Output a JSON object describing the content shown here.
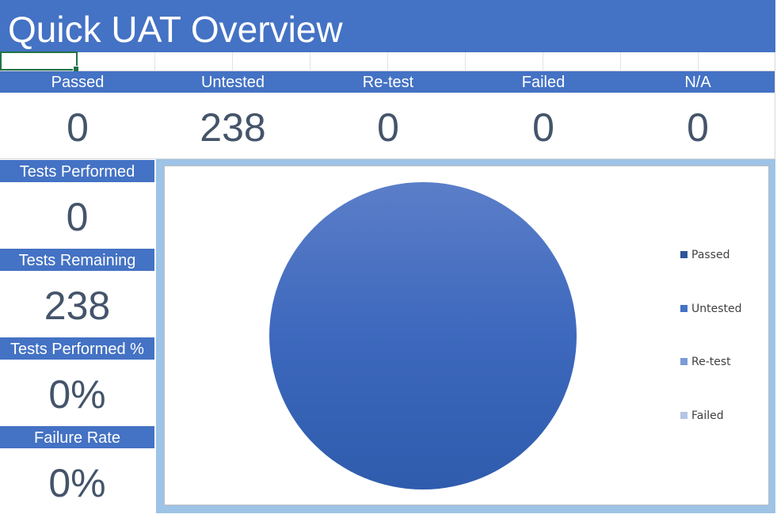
{
  "header": {
    "title": "Quick UAT Overview"
  },
  "status_summary": [
    {
      "label": "Passed",
      "value": "0"
    },
    {
      "label": "Untested",
      "value": "238"
    },
    {
      "label": "Re-test",
      "value": "0"
    },
    {
      "label": "Failed",
      "value": "0"
    },
    {
      "label": "N/A",
      "value": "0"
    }
  ],
  "metrics": [
    {
      "label": "Tests Performed",
      "value": "0"
    },
    {
      "label": "Tests Remaining",
      "value": "238"
    },
    {
      "label": "Tests Performed %",
      "value": "0%"
    },
    {
      "label": "Failure Rate",
      "value": "0%"
    }
  ],
  "colors": {
    "header_blue": "#4472c4",
    "value_text": "#44546a",
    "chart_border": "#9dc3e6",
    "selection_green": "#217346"
  },
  "chart_data": {
    "type": "pie",
    "categories": [
      "Passed",
      "Untested",
      "Re-test",
      "Failed"
    ],
    "values": [
      0,
      238,
      0,
      0
    ],
    "colors": [
      "#2f5597",
      "#4472c4",
      "#7a9bd6",
      "#b4c6e7"
    ],
    "legend_position": "right"
  }
}
